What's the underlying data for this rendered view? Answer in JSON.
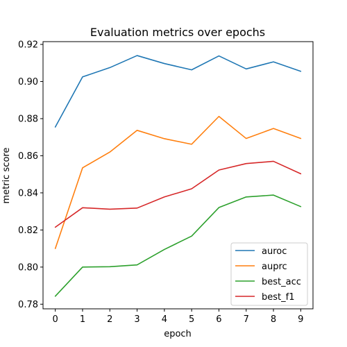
{
  "chart_data": {
    "type": "line",
    "title": "Evaluation metrics over epochs",
    "xlabel": "epoch",
    "ylabel": "metric score",
    "x": [
      0,
      1,
      2,
      3,
      4,
      5,
      6,
      7,
      8,
      9
    ],
    "xticks": [
      0,
      1,
      2,
      3,
      4,
      5,
      6,
      7,
      8,
      9
    ],
    "yticks": [
      0.78,
      0.8,
      0.82,
      0.84,
      0.86,
      0.88,
      0.9,
      0.92
    ],
    "xlim": [
      -0.45,
      9.45
    ],
    "ylim": [
      0.7775,
      0.9215
    ],
    "grid": false,
    "legend_position": "lower-right",
    "series": [
      {
        "name": "auroc",
        "color": "#1f77b4",
        "values": [
          0.8755,
          0.9025,
          0.9075,
          0.914,
          0.9097,
          0.9063,
          0.9138,
          0.9068,
          0.9106,
          0.9055
        ]
      },
      {
        "name": "auprc",
        "color": "#ff7f0e",
        "values": [
          0.81,
          0.8535,
          0.862,
          0.8737,
          0.8692,
          0.8662,
          0.8812,
          0.8693,
          0.8747,
          0.8693
        ]
      },
      {
        "name": "best_acc",
        "color": "#2ca02c",
        "values": [
          0.7843,
          0.8,
          0.8002,
          0.8012,
          0.8095,
          0.8167,
          0.8321,
          0.8378,
          0.8388,
          0.8326
        ]
      },
      {
        "name": "best_f1",
        "color": "#d62728",
        "values": [
          0.8215,
          0.832,
          0.8312,
          0.8318,
          0.8378,
          0.8422,
          0.8523,
          0.8558,
          0.857,
          0.8503
        ]
      }
    ]
  }
}
